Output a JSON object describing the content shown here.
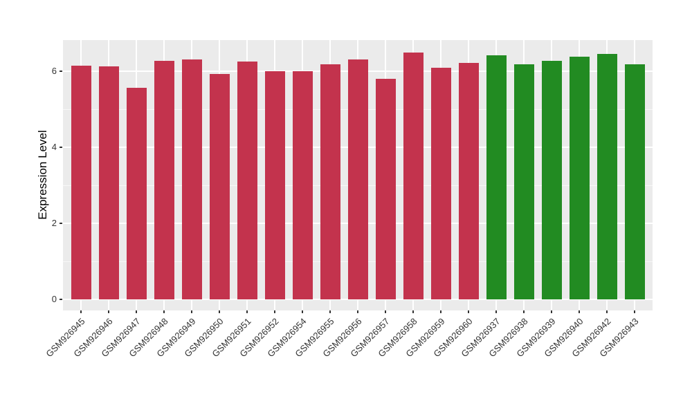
{
  "chart_data": {
    "type": "bar",
    "title": "",
    "xlabel": "",
    "ylabel": "Expression Level",
    "categories": [
      "GSM926945",
      "GSM926946",
      "GSM926947",
      "GSM926948",
      "GSM926949",
      "GSM926950",
      "GSM926951",
      "GSM926952",
      "GSM926954",
      "GSM926955",
      "GSM926956",
      "GSM926957",
      "GSM926958",
      "GSM926959",
      "GSM926960",
      "GSM926937",
      "GSM926938",
      "GSM926939",
      "GSM926940",
      "GSM926942",
      "GSM926943"
    ],
    "values": [
      6.15,
      6.13,
      5.57,
      6.27,
      6.31,
      5.93,
      6.25,
      6.0,
      6.0,
      6.18,
      6.31,
      5.8,
      6.49,
      6.09,
      6.22,
      6.42,
      6.18,
      6.27,
      6.38,
      6.45,
      6.18
    ],
    "groups": [
      "red",
      "red",
      "red",
      "red",
      "red",
      "red",
      "red",
      "red",
      "red",
      "red",
      "red",
      "red",
      "red",
      "red",
      "red",
      "green",
      "green",
      "green",
      "green",
      "green",
      "green"
    ],
    "group_colors": {
      "red": "#C3334D",
      "green": "#228B22"
    },
    "yticks": [
      0,
      2,
      4,
      6
    ],
    "minor_yticks": [
      1,
      3,
      5
    ],
    "ylim": [
      -0.29,
      6.82
    ],
    "grid": true,
    "legend": "none",
    "panel_background": "#EBEBEB",
    "gridline_color": "#FFFFFF",
    "tick_label_color": "#333333"
  }
}
